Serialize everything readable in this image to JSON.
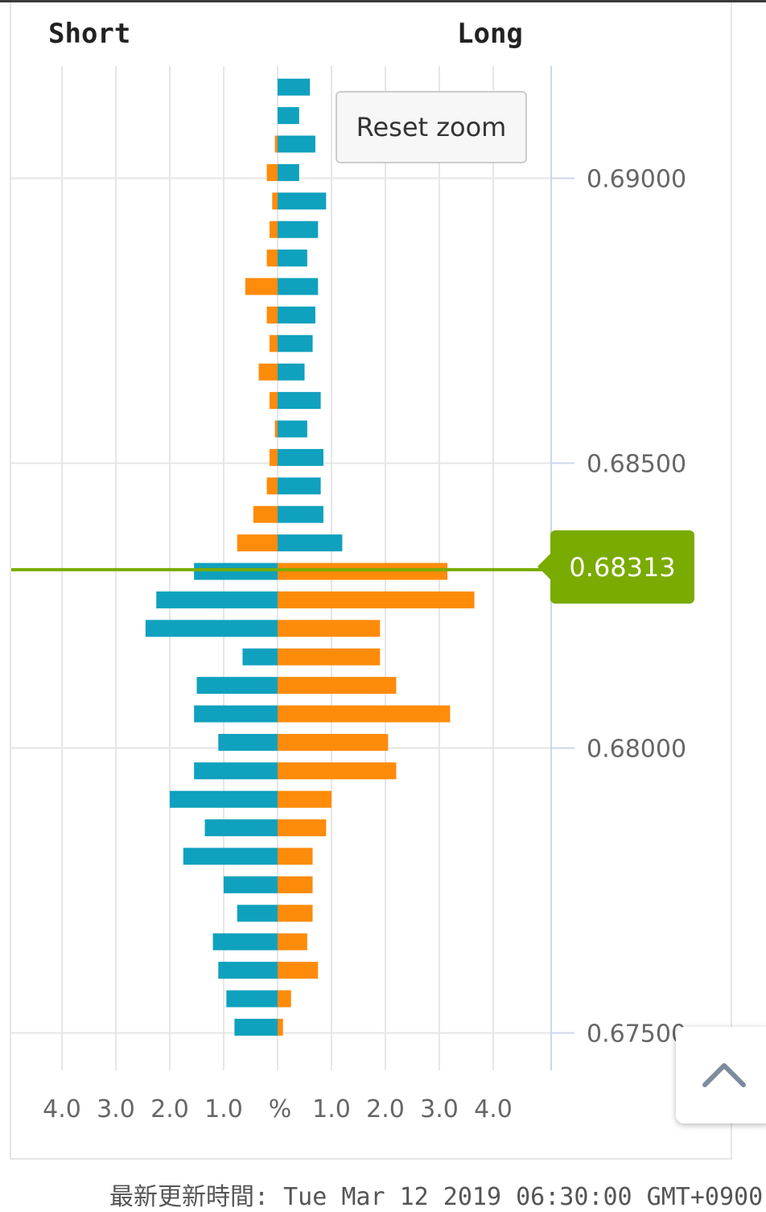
{
  "header": {
    "short_label": "Short",
    "long_label": "Long"
  },
  "reset_zoom": {
    "label": "Reset zoom"
  },
  "current_price": {
    "label": "0.68313",
    "value": 0.68313
  },
  "footer": {
    "label": "最新更新時間:",
    "timestamp": "Tue Mar 12 2019 06:30:00 GMT+0900"
  },
  "colors": {
    "teal": "#0fa1be",
    "orange": "#ff8b0a",
    "price_line": "#7aab00"
  },
  "scroll_top": {
    "icon": "chevron-up-icon"
  },
  "chart_data": {
    "type": "bar",
    "orientation": "horizontal-butterfly",
    "x_axis": {
      "center_label": "%",
      "ticks": [
        "4.0",
        "3.0",
        "2.0",
        "1.0",
        "1.0",
        "2.0",
        "3.0",
        "4.0"
      ],
      "range": [
        -4.5,
        4.5
      ]
    },
    "y_axis": {
      "ticks": [
        "0.69000",
        "0.68500",
        "0.68000",
        "0.67500"
      ],
      "tick_values": [
        0.69,
        0.685,
        0.68,
        0.675
      ]
    },
    "series": [
      {
        "name": "Short",
        "side": "left"
      },
      {
        "name": "Long",
        "side": "right"
      }
    ],
    "rows": [
      {
        "price": 0.6916,
        "short": 0.0,
        "long": 0.6,
        "short_color": "orange",
        "long_color": "teal"
      },
      {
        "price": 0.6911,
        "short": 0.0,
        "long": 0.4,
        "short_color": "orange",
        "long_color": "teal"
      },
      {
        "price": 0.6906,
        "short": 0.05,
        "long": 0.7,
        "short_color": "orange",
        "long_color": "teal"
      },
      {
        "price": 0.6901,
        "short": 0.2,
        "long": 0.4,
        "short_color": "orange",
        "long_color": "teal"
      },
      {
        "price": 0.6896,
        "short": 0.1,
        "long": 0.9,
        "short_color": "orange",
        "long_color": "teal"
      },
      {
        "price": 0.6891,
        "short": 0.15,
        "long": 0.75,
        "short_color": "orange",
        "long_color": "teal"
      },
      {
        "price": 0.6886,
        "short": 0.2,
        "long": 0.55,
        "short_color": "orange",
        "long_color": "teal"
      },
      {
        "price": 0.6881,
        "short": 0.6,
        "long": 0.75,
        "short_color": "orange",
        "long_color": "teal"
      },
      {
        "price": 0.6876,
        "short": 0.2,
        "long": 0.7,
        "short_color": "orange",
        "long_color": "teal"
      },
      {
        "price": 0.6871,
        "short": 0.15,
        "long": 0.65,
        "short_color": "orange",
        "long_color": "teal"
      },
      {
        "price": 0.6866,
        "short": 0.35,
        "long": 0.5,
        "short_color": "orange",
        "long_color": "teal"
      },
      {
        "price": 0.6861,
        "short": 0.15,
        "long": 0.8,
        "short_color": "orange",
        "long_color": "teal"
      },
      {
        "price": 0.6856,
        "short": 0.05,
        "long": 0.55,
        "short_color": "orange",
        "long_color": "teal"
      },
      {
        "price": 0.6851,
        "short": 0.15,
        "long": 0.85,
        "short_color": "orange",
        "long_color": "teal"
      },
      {
        "price": 0.6846,
        "short": 0.2,
        "long": 0.8,
        "short_color": "orange",
        "long_color": "teal"
      },
      {
        "price": 0.6841,
        "short": 0.45,
        "long": 0.85,
        "short_color": "orange",
        "long_color": "teal"
      },
      {
        "price": 0.6836,
        "short": 0.75,
        "long": 1.2,
        "short_color": "orange",
        "long_color": "teal"
      },
      {
        "price": 0.6831,
        "short": 1.55,
        "long": 3.15,
        "short_color": "teal",
        "long_color": "orange"
      },
      {
        "price": 0.6826,
        "short": 2.25,
        "long": 3.65,
        "short_color": "teal",
        "long_color": "orange"
      },
      {
        "price": 0.6821,
        "short": 2.45,
        "long": 1.9,
        "short_color": "teal",
        "long_color": "orange"
      },
      {
        "price": 0.6816,
        "short": 0.65,
        "long": 1.9,
        "short_color": "teal",
        "long_color": "orange"
      },
      {
        "price": 0.6811,
        "short": 1.5,
        "long": 2.2,
        "short_color": "teal",
        "long_color": "orange"
      },
      {
        "price": 0.6806,
        "short": 1.55,
        "long": 3.2,
        "short_color": "teal",
        "long_color": "orange"
      },
      {
        "price": 0.6801,
        "short": 1.1,
        "long": 2.05,
        "short_color": "teal",
        "long_color": "orange"
      },
      {
        "price": 0.6796,
        "short": 1.55,
        "long": 2.2,
        "short_color": "teal",
        "long_color": "orange"
      },
      {
        "price": 0.6791,
        "short": 2.0,
        "long": 1.0,
        "short_color": "teal",
        "long_color": "orange"
      },
      {
        "price": 0.6786,
        "short": 1.35,
        "long": 0.9,
        "short_color": "teal",
        "long_color": "orange"
      },
      {
        "price": 0.6781,
        "short": 1.75,
        "long": 0.65,
        "short_color": "teal",
        "long_color": "orange"
      },
      {
        "price": 0.6776,
        "short": 1.0,
        "long": 0.65,
        "short_color": "teal",
        "long_color": "orange"
      },
      {
        "price": 0.6771,
        "short": 0.75,
        "long": 0.65,
        "short_color": "teal",
        "long_color": "orange"
      },
      {
        "price": 0.6766,
        "short": 1.2,
        "long": 0.55,
        "short_color": "teal",
        "long_color": "orange"
      },
      {
        "price": 0.6761,
        "short": 1.1,
        "long": 0.75,
        "short_color": "teal",
        "long_color": "orange"
      },
      {
        "price": 0.6756,
        "short": 0.95,
        "long": 0.25,
        "short_color": "teal",
        "long_color": "orange"
      },
      {
        "price": 0.6751,
        "short": 0.8,
        "long": 0.1,
        "short_color": "teal",
        "long_color": "orange"
      }
    ]
  }
}
